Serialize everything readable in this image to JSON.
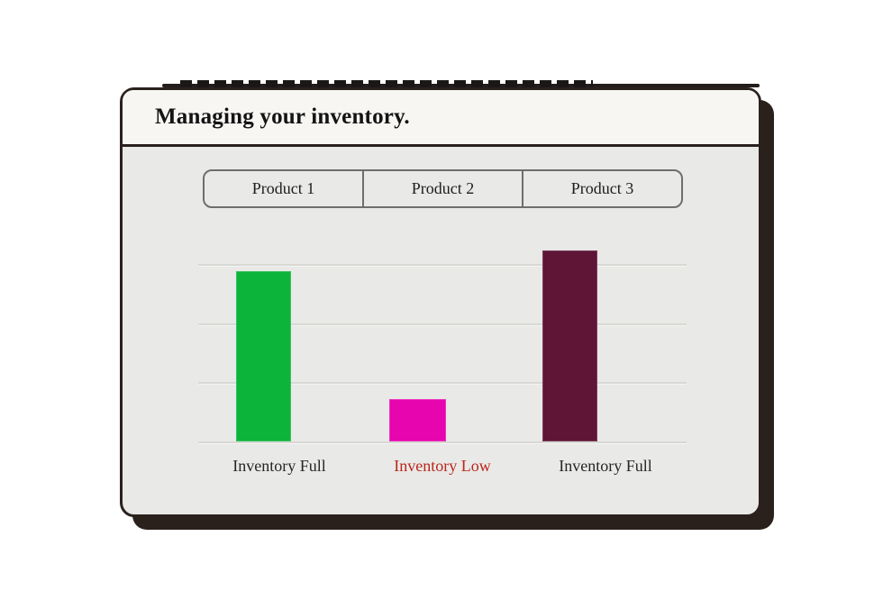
{
  "page": {
    "background": "#ffffff"
  },
  "card": {
    "title": "Managing your inventory.",
    "header_bg": "#f7f6f3",
    "body_bg": "#e9e9e7",
    "border_color": "#2a211d",
    "title_color": "#141414"
  },
  "tabs": [
    {
      "label": "Product 1"
    },
    {
      "label": "Product 2"
    },
    {
      "label": "Product 3"
    }
  ],
  "chart_data": {
    "type": "bar",
    "title": "Managing your inventory.",
    "categories": [
      "Product 1",
      "Product 2",
      "Product 3"
    ],
    "bars": [
      {
        "label": "Inventory Full",
        "value": 2.88,
        "color": "#0cb43a",
        "label_color": "#262626"
      },
      {
        "label": "Inventory Low",
        "value": 0.72,
        "color": "#e605ae",
        "label_color": "#b9271c"
      },
      {
        "label": "Inventory Full",
        "value": 3.23,
        "color": "#5e1536",
        "label_color": "#262626"
      }
    ],
    "ylim": [
      0,
      3.3
    ],
    "gridlines": [
      0,
      1,
      2,
      3
    ],
    "xlabel": "",
    "ylabel": "",
    "legend": "none",
    "grid": "horizontal"
  },
  "colors": {
    "gridline": "#d8d8d5",
    "tab_border": "#6e6e6e",
    "status_low_text": "#b9271c"
  }
}
